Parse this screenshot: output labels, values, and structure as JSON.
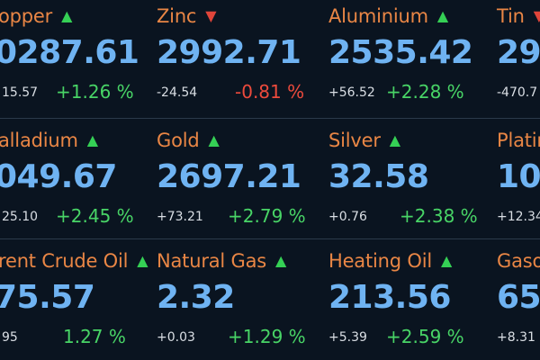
{
  "colors": {
    "background": "#0a1420",
    "name": "#e98645",
    "price": "#6fb3f2",
    "up": "#35d055",
    "down": "#e0453a"
  },
  "tiles": [
    {
      "name": "opper",
      "arrow": "▲",
      "dir": "up",
      "price": "0287.61",
      "change": "15.57",
      "pct": "+1.26 %"
    },
    {
      "name": "Zinc",
      "arrow": "▼",
      "dir": "down",
      "price": "2992.71",
      "change": "-24.54",
      "pct": "-0.81 %"
    },
    {
      "name": "Aluminium",
      "arrow": "▲",
      "dir": "up",
      "price": "2535.42",
      "change": "+56.52",
      "pct": "+2.28 %"
    },
    {
      "name": "Tin",
      "arrow": "▼",
      "dir": "down",
      "price": "294",
      "change": "-470.7",
      "pct": ""
    },
    {
      "name": "alladium",
      "arrow": "▲",
      "dir": "up",
      "price": "049.67",
      "change": "25.10",
      "pct": "+2.45 %"
    },
    {
      "name": "Gold",
      "arrow": "▲",
      "dir": "up",
      "price": "2697.21",
      "change": "+73.21",
      "pct": "+2.79 %"
    },
    {
      "name": "Silver",
      "arrow": "▲",
      "dir": "up",
      "price": "32.58",
      "change": "+0.76",
      "pct": "+2.38 %"
    },
    {
      "name": "Platin",
      "arrow": "",
      "dir": "up",
      "price": "100",
      "change": "+12.34",
      "pct": ""
    },
    {
      "name": "rent Crude Oil",
      "arrow": "▲",
      "dir": "up",
      "price": "75.57",
      "change": "95",
      "pct": "1.27 %"
    },
    {
      "name": "Natural Gas",
      "arrow": "▲",
      "dir": "up",
      "price": "2.32",
      "change": "+0.03",
      "pct": "+1.29 %"
    },
    {
      "name": "Heating Oil",
      "arrow": "▲",
      "dir": "up",
      "price": "213.56",
      "change": "+5.39",
      "pct": "+2.59 %"
    },
    {
      "name": "Gaso",
      "arrow": "",
      "dir": "up",
      "price": "657",
      "change": "+8.31",
      "pct": ""
    }
  ]
}
